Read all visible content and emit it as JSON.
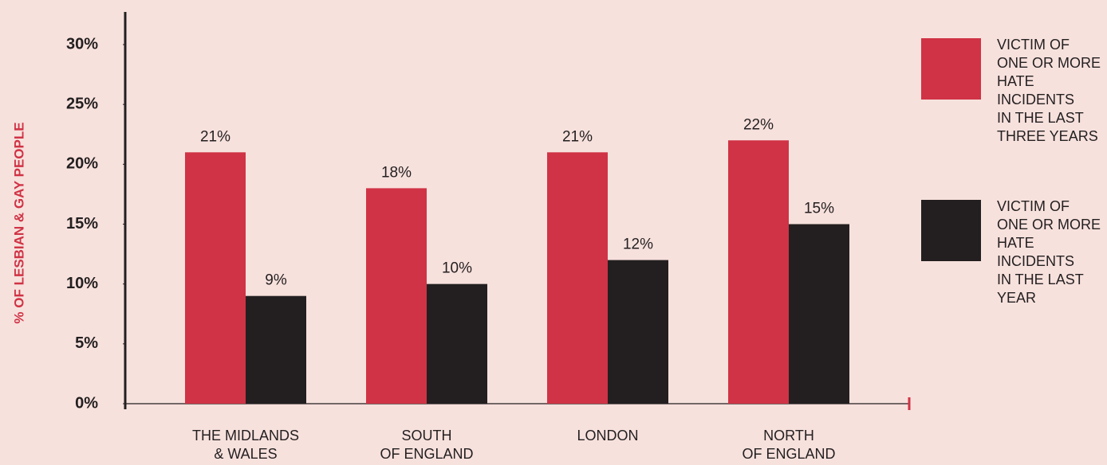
{
  "chart_data": {
    "type": "bar",
    "y_label": "% OF LESBIAN & GAY PEOPLE",
    "categories": [
      "THE MIDLANDS\n& WALES",
      "SOUTH\nOF ENGLAND",
      "LONDON",
      "NORTH\nOF ENGLAND"
    ],
    "series": [
      {
        "name": "VICTIM OF\nONE OR MORE\nHATE\nINCIDENTS\nIN THE LAST\nTHREE YEARS",
        "color": "#d03345",
        "values": [
          21,
          18,
          21,
          22
        ],
        "value_labels": [
          "21%",
          "18%",
          "21%",
          "22%"
        ]
      },
      {
        "name": "VICTIM OF\nONE OR MORE\nHATE\nINCIDENTS\nIN THE LAST\nYEAR",
        "color": "#231f20",
        "values": [
          9,
          10,
          12,
          15
        ],
        "value_labels": [
          "9%",
          "10%",
          "12%",
          "15%"
        ]
      }
    ],
    "ylim": [
      0,
      30
    ],
    "yticks": [
      {
        "value": 0,
        "label": "0%"
      },
      {
        "value": 5,
        "label": "5%"
      },
      {
        "value": 10,
        "label": "10%"
      },
      {
        "value": 15,
        "label": "15%"
      },
      {
        "value": 20,
        "label": "20%"
      },
      {
        "value": 25,
        "label": "25%"
      },
      {
        "value": 30,
        "label": "30%"
      }
    ],
    "legend": "right"
  }
}
